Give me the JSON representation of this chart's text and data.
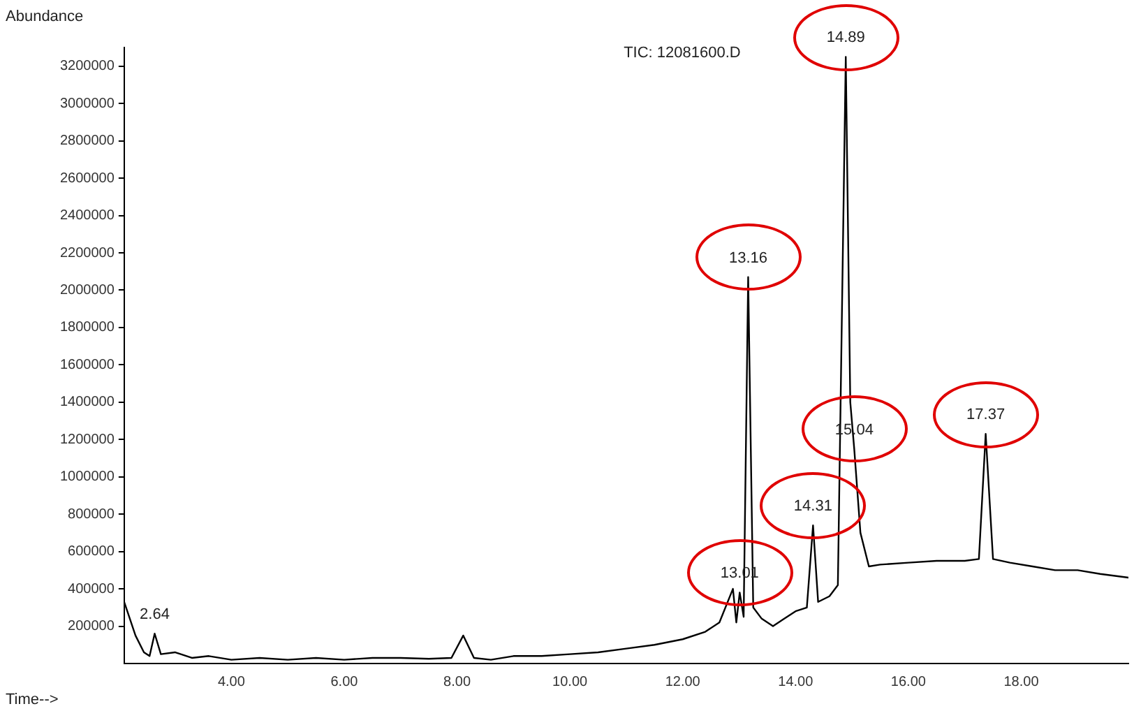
{
  "chart_data": {
    "type": "line",
    "title": "TIC: 12081600.D",
    "xlabel": "Time-->",
    "ylabel": "Abundance",
    "x": [
      2.1,
      2.3,
      2.45,
      2.55,
      2.64,
      2.75,
      3.0,
      3.3,
      3.6,
      4.0,
      4.5,
      5.0,
      5.5,
      6.0,
      6.5,
      7.0,
      7.5,
      7.9,
      8.11,
      8.3,
      8.6,
      9.0,
      9.5,
      10.0,
      10.5,
      11.0,
      11.5,
      12.0,
      12.4,
      12.65,
      12.89,
      12.95,
      13.01,
      13.08,
      13.16,
      13.25,
      13.4,
      13.6,
      13.8,
      14.0,
      14.2,
      14.31,
      14.4,
      14.6,
      14.75,
      14.89,
      14.97,
      15.04,
      15.15,
      15.3,
      15.5,
      16.0,
      16.5,
      17.0,
      17.25,
      17.37,
      17.5,
      17.8,
      18.2,
      18.6,
      19.0,
      19.4,
      19.9
    ],
    "series": [
      {
        "color": "#000000",
        "values": [
          330000,
          150000,
          60000,
          40000,
          160000,
          50000,
          60000,
          30000,
          40000,
          20000,
          30000,
          20000,
          30000,
          20000,
          30000,
          30000,
          25000,
          30000,
          150000,
          30000,
          20000,
          40000,
          40000,
          50000,
          60000,
          80000,
          100000,
          130000,
          170000,
          220000,
          400000,
          220000,
          380000,
          250000,
          2070000,
          300000,
          240000,
          200000,
          240000,
          280000,
          300000,
          740000,
          330000,
          360000,
          420000,
          3250000,
          1400000,
          1150000,
          700000,
          520000,
          530000,
          540000,
          550000,
          550000,
          560000,
          1230000,
          560000,
          540000,
          520000,
          500000,
          500000,
          480000,
          460000
        ]
      }
    ],
    "xlim": [
      2.1,
      19.9
    ],
    "xticks": [
      {
        "value": 4,
        "label": "4.00"
      },
      {
        "value": 6,
        "label": "6.00"
      },
      {
        "value": 8,
        "label": "8.00"
      },
      {
        "value": 10,
        "label": "10.00"
      },
      {
        "value": 12,
        "label": "12.00"
      },
      {
        "value": 14,
        "label": "14.00"
      },
      {
        "value": 16,
        "label": "16.00"
      },
      {
        "value": 18,
        "label": "18.00"
      }
    ],
    "ylim": [
      0,
      3300000
    ],
    "yticks": [
      200000,
      400000,
      600000,
      800000,
      1000000,
      1200000,
      1400000,
      1600000,
      1800000,
      2000000,
      2200000,
      2400000,
      2600000,
      2800000,
      3000000,
      3200000
    ],
    "grid": false,
    "legend": false,
    "marker": "none",
    "line_style": "solid",
    "annotations": [
      {
        "text": "2.64",
        "x": 2.64,
        "y": 160000
      },
      {
        "text": "14.89",
        "x": 14.89,
        "y": 3250000
      },
      {
        "text": "13.16",
        "x": 13.16,
        "y": 2070000
      },
      {
        "text": "15.04",
        "x": 15.04,
        "y": 1150000
      },
      {
        "text": "17.37",
        "x": 17.37,
        "y": 1230000
      },
      {
        "text": "14.31",
        "x": 14.31,
        "y": 740000
      },
      {
        "text": "13.01",
        "x": 13.01,
        "y": 380000
      }
    ]
  }
}
